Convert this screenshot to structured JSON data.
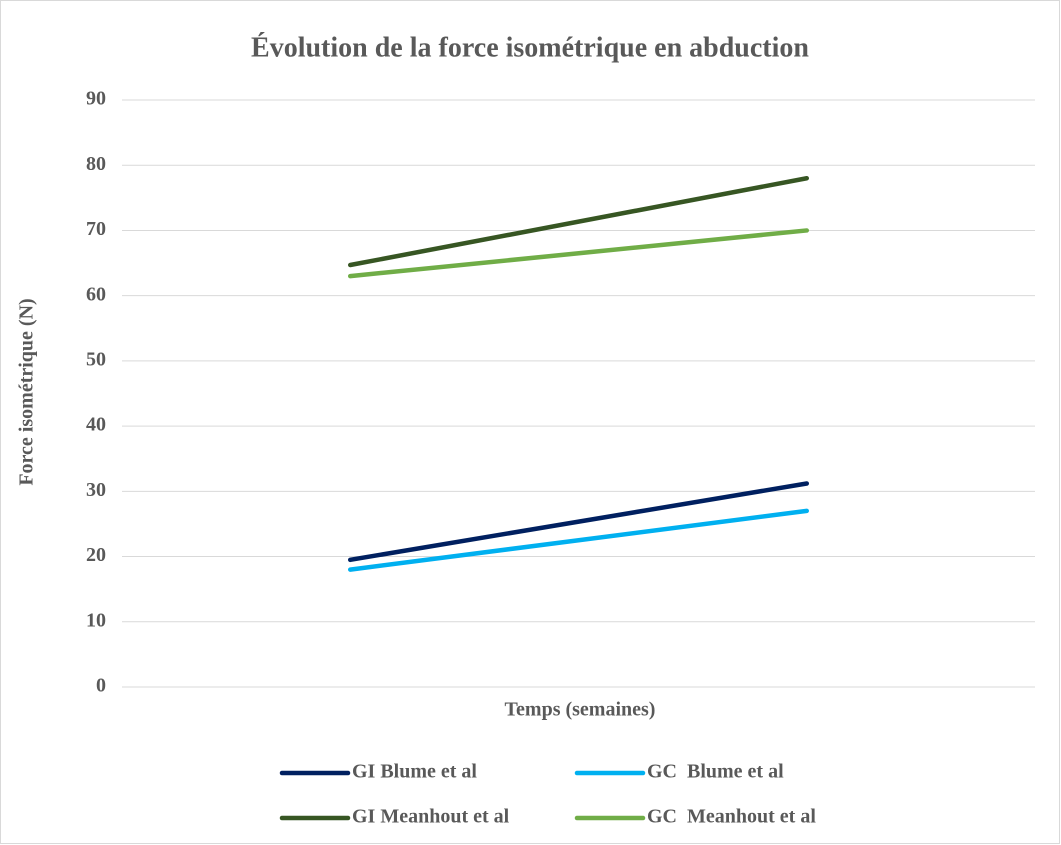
{
  "chart_data": {
    "type": "line",
    "title": "Évolution de la force isométrique en abduction",
    "x_label": "Temps (semaines)",
    "y_label": "Force isométrique (N)",
    "categories": [
      null,
      null
    ],
    "series": [
      {
        "name": "GI Blume et al",
        "color": "#002060",
        "values": [
          19.5,
          31.2
        ]
      },
      {
        "name": "GC  Blume et al",
        "color": "#00b0f0",
        "values": [
          18,
          27
        ]
      },
      {
        "name": "GI Meanhout et al",
        "color": "#375623",
        "values": [
          64.7,
          78
        ]
      },
      {
        "name": "GC  Meanhout et al",
        "color": "#70ad47",
        "values": [
          63,
          70
        ]
      }
    ],
    "ylim": [
      0,
      90
    ],
    "yticks": [
      0,
      10,
      20,
      30,
      40,
      50,
      60,
      70,
      80,
      90
    ],
    "grid": true,
    "legend": "bottom"
  }
}
